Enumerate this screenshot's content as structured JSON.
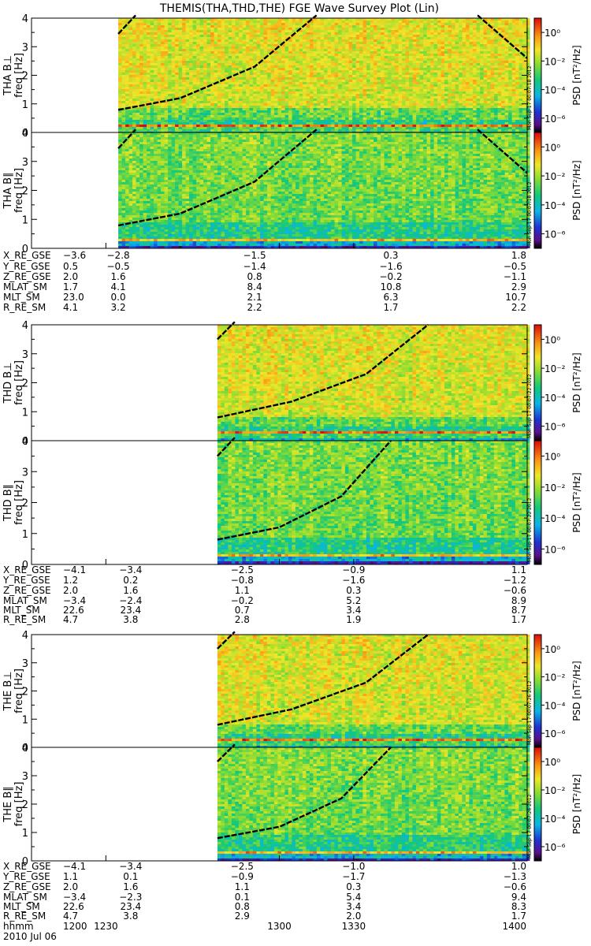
{
  "chart_data": {
    "type": "heatmap",
    "title": "THEMIS(THA,THD,THE) FGE Wave Survey Plot (Lin)",
    "colorbar_label": "PSD [nT²/Hz]",
    "colorbar_ticks": [
      "10⁰",
      "10⁻²",
      "10⁻⁴",
      "10⁻⁶"
    ],
    "colorbar_tick_exponents": [
      0,
      -2,
      -4,
      -6
    ],
    "y_ticks": [
      0,
      1,
      2,
      3,
      4
    ],
    "ylim": [
      0,
      4
    ],
    "x_range": [
      1200,
      1400
    ],
    "date_label": "2010 Jul 06",
    "time_row": {
      "label": "hhmm",
      "positions": [
        1200,
        1230,
        1300,
        1330,
        1400
      ],
      "values": [
        "1200",
        "1230",
        "1300",
        "1330",
        "1400"
      ]
    },
    "probes": [
      {
        "data_start": 1235,
        "panels": [
          {
            "ylabel": "THA B⊥",
            "ylabel2": "freq [Hz]",
            "component": "perp",
            "stamp": "Mon Sep 17 00:07:18 2012",
            "curves": [
              {
                "points": [
                  [
                    1235,
                    0.79
                  ],
                  [
                    1260,
                    1.2
                  ],
                  [
                    1290,
                    2.3
                  ],
                  [
                    1315,
                    4.1
                  ]
                ]
              },
              {
                "points": [
                  [
                    1235,
                    3.45
                  ],
                  [
                    1242,
                    4.1
                  ]
                ]
              },
              {
                "points": [
                  [
                    1380,
                    4.1
                  ],
                  [
                    1400,
                    2.6
                  ]
                ]
              }
            ]
          },
          {
            "ylabel": "THA B∥",
            "ylabel2": "freq [Hz]",
            "component": "par",
            "stamp": "Mon Sep 17 00:07:18 2012",
            "curves": [
              {
                "points": [
                  [
                    1235,
                    0.79
                  ],
                  [
                    1260,
                    1.2
                  ],
                  [
                    1290,
                    2.3
                  ],
                  [
                    1315,
                    4.1
                  ]
                ]
              },
              {
                "points": [
                  [
                    1235,
                    3.45
                  ],
                  [
                    1242,
                    4.1
                  ]
                ]
              },
              {
                "points": [
                  [
                    1380,
                    4.1
                  ],
                  [
                    1400,
                    2.6
                  ]
                ]
              }
            ]
          }
        ],
        "ephemeris": {
          "positions": [
            1200,
            1235,
            1290,
            1345,
            1400
          ],
          "rows": [
            {
              "label": "X_RE_GSE",
              "values": [
                "−3.6",
                "−2.8",
                "−1.5",
                "0.3",
                "1.8"
              ]
            },
            {
              "label": "Y_RE_GSE",
              "values": [
                "0.5",
                "−0.5",
                "−1.4",
                "−1.6",
                "−0.5"
              ]
            },
            {
              "label": "Z_RE_GSE",
              "values": [
                "2.0",
                "1.6",
                "0.8",
                "−0.2",
                "−1.1"
              ]
            },
            {
              "label": "MLAT_SM",
              "values": [
                "1.7",
                "4.1",
                "8.4",
                "10.8",
                "2.9"
              ]
            },
            {
              "label": "MLT_SM",
              "values": [
                "23.0",
                "0.0",
                "2.1",
                "6.3",
                "10.7"
              ]
            },
            {
              "label": "R_RE_SM",
              "values": [
                "4.1",
                "3.2",
                "2.2",
                "1.7",
                "2.2"
              ]
            }
          ]
        }
      },
      {
        "data_start": 1275,
        "panels": [
          {
            "ylabel": "THD B⊥",
            "ylabel2": "freq [Hz]",
            "component": "perp",
            "stamp": "Mon Sep 17 00:07:22 2012",
            "curves": [
              {
                "points": [
                  [
                    1275,
                    0.8
                  ],
                  [
                    1305,
                    1.35
                  ],
                  [
                    1335,
                    2.3
                  ],
                  [
                    1360,
                    4.0
                  ]
                ]
              },
              {
                "points": [
                  [
                    1275,
                    3.5
                  ],
                  [
                    1282,
                    4.1
                  ]
                ]
              }
            ]
          },
          {
            "ylabel": "THD B∥",
            "ylabel2": "freq [Hz]",
            "component": "par",
            "stamp": "Mon Sep 17 00:07:22 2012",
            "curves": [
              {
                "points": [
                  [
                    1275,
                    0.8
                  ],
                  [
                    1300,
                    1.2
                  ],
                  [
                    1325,
                    2.2
                  ],
                  [
                    1345,
                    4.0
                  ]
                ]
              },
              {
                "points": [
                  [
                    1275,
                    3.5
                  ],
                  [
                    1282,
                    4.1
                  ]
                ]
              }
            ]
          }
        ],
        "ephemeris": {
          "positions": [
            1200,
            1240,
            1285,
            1330,
            1400
          ],
          "rows": [
            {
              "label": "X_RE_GSE",
              "values": [
                "−4.1",
                "−3.4",
                "−2.5",
                "−0.9",
                "1.1"
              ]
            },
            {
              "label": "Y_RE_GSE",
              "values": [
                "1.2",
                "0.2",
                "−0.8",
                "−1.6",
                "−1.2"
              ]
            },
            {
              "label": "Z_RE_GSE",
              "values": [
                "2.0",
                "1.6",
                "1.1",
                "0.3",
                "−0.6"
              ]
            },
            {
              "label": "MLAT_SM",
              "values": [
                "−3.4",
                "−2.4",
                "−0.2",
                "5.2",
                "8.9"
              ]
            },
            {
              "label": "MLT_SM",
              "values": [
                "22.6",
                "23.4",
                "0.7",
                "3.4",
                "8.7"
              ]
            },
            {
              "label": "R_RE_SM",
              "values": [
                "4.7",
                "3.8",
                "2.8",
                "1.9",
                "1.7"
              ]
            }
          ]
        }
      },
      {
        "data_start": 1275,
        "panels": [
          {
            "ylabel": "THE B⊥",
            "ylabel2": "freq [Hz]",
            "component": "perp",
            "stamp": "Mon Sep 17 00:07:26 2012",
            "curves": [
              {
                "points": [
                  [
                    1275,
                    0.8
                  ],
                  [
                    1305,
                    1.35
                  ],
                  [
                    1335,
                    2.3
                  ],
                  [
                    1360,
                    4.0
                  ]
                ]
              },
              {
                "points": [
                  [
                    1275,
                    3.5
                  ],
                  [
                    1282,
                    4.1
                  ]
                ]
              }
            ]
          },
          {
            "ylabel": "THE B∥",
            "ylabel2": "freq [Hz]",
            "component": "par",
            "stamp": "Mon Sep 17 00:07:26 2012",
            "curves": [
              {
                "points": [
                  [
                    1275,
                    0.8
                  ],
                  [
                    1300,
                    1.2
                  ],
                  [
                    1325,
                    2.2
                  ],
                  [
                    1345,
                    4.0
                  ]
                ]
              },
              {
                "points": [
                  [
                    1275,
                    3.5
                  ],
                  [
                    1282,
                    4.1
                  ]
                ]
              }
            ]
          }
        ],
        "ephemeris": {
          "positions": [
            1200,
            1240,
            1285,
            1330,
            1400
          ],
          "rows": [
            {
              "label": "X_RE_GSE",
              "values": [
                "−4.1",
                "−3.4",
                "−2.5",
                "−1.0",
                "1.0"
              ]
            },
            {
              "label": "Y_RE_GSE",
              "values": [
                "1.1",
                "0.1",
                "−0.9",
                "−1.7",
                "−1.3"
              ]
            },
            {
              "label": "Z_RE_GSE",
              "values": [
                "2.0",
                "1.6",
                "1.1",
                "0.3",
                "−0.6"
              ]
            },
            {
              "label": "MLAT_SM",
              "values": [
                "−3.4",
                "−2.3",
                "0.1",
                "5.4",
                "9.4"
              ]
            },
            {
              "label": "MLT_SM",
              "values": [
                "22.6",
                "23.4",
                "0.8",
                "3.4",
                "8.3"
              ]
            },
            {
              "label": "R_RE_SM",
              "values": [
                "4.7",
                "3.8",
                "2.9",
                "2.0",
                "1.7"
              ]
            }
          ]
        }
      }
    ]
  }
}
